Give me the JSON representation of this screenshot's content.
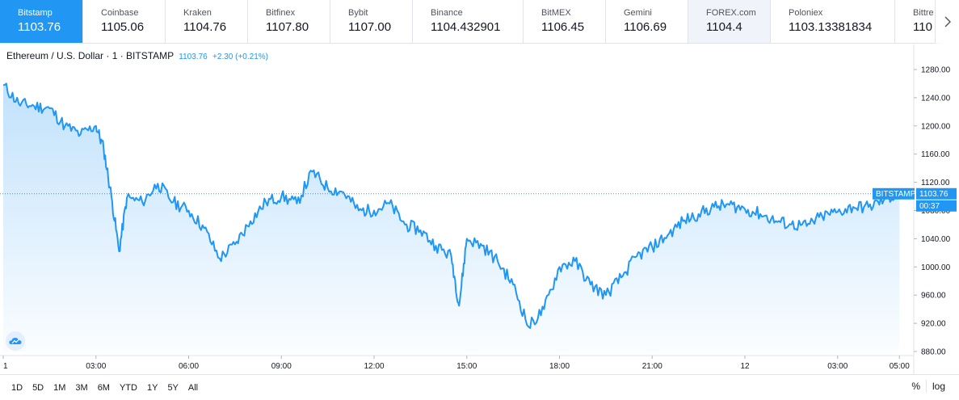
{
  "tabs": [
    {
      "exchange": "Bitstamp",
      "price": "1103.76",
      "state": "active"
    },
    {
      "exchange": "Coinbase",
      "price": "1105.06",
      "state": ""
    },
    {
      "exchange": "Kraken",
      "price": "1104.76",
      "state": ""
    },
    {
      "exchange": "Bitfinex",
      "price": "1107.80",
      "state": ""
    },
    {
      "exchange": "Bybit",
      "price": "1107.00",
      "state": ""
    },
    {
      "exchange": "Binance",
      "price": "1104.432901",
      "state": ""
    },
    {
      "exchange": "BitMEX",
      "price": "1106.45",
      "state": ""
    },
    {
      "exchange": "Gemini",
      "price": "1106.69",
      "state": ""
    },
    {
      "exchange": "FOREX.com",
      "price": "1104.4",
      "state": "highlighted"
    },
    {
      "exchange": "Poloniex",
      "price": "1103.13381834",
      "state": ""
    },
    {
      "exchange": "Bittre",
      "price": "110",
      "state": "partial"
    }
  ],
  "scroll_icon": "chevron-right-icon",
  "legend": {
    "symbol": "Ethereum / U.S. Dollar · 1 · BITSTAMP",
    "value": "1103.76",
    "change": "+2.30 (+0.21%)"
  },
  "price_label": {
    "exchange": "BITSTAMP",
    "price": "1103.76",
    "countdown": "00:37"
  },
  "chart_data": {
    "type": "area",
    "title": "",
    "xlabel": "",
    "ylabel": "",
    "series": [
      {
        "x": [
          "00:00",
          "00:30",
          "01:00",
          "01:30",
          "02:00",
          "02:30",
          "03:00",
          "03:15",
          "03:30",
          "03:45",
          "04:00",
          "04:30",
          "05:00",
          "05:30",
          "06:00",
          "06:30",
          "07:00",
          "07:30",
          "08:00",
          "08:30",
          "09:00",
          "09:30",
          "10:00",
          "10:30",
          "11:00",
          "11:30",
          "12:00",
          "12:30",
          "13:00",
          "13:30",
          "14:00",
          "14:30",
          "14:45",
          "15:00",
          "15:30",
          "16:00",
          "16:30",
          "17:00",
          "17:30",
          "18:00",
          "18:30",
          "19:00",
          "19:30",
          "20:00",
          "20:30",
          "21:00",
          "21:30",
          "22:00",
          "22:30",
          "23:00",
          "23:30",
          "00:00",
          "00:30",
          "01:00",
          "01:30",
          "02:00",
          "02:30",
          "03:00",
          "03:30",
          "04:00",
          "04:30",
          "05:00"
        ],
        "y": [
          1258,
          1232,
          1228,
          1225,
          1200,
          1188,
          1200,
          1168,
          1100,
          1022,
          1098,
          1092,
          1118,
          1092,
          1080,
          1055,
          1012,
          1032,
          1065,
          1092,
          1100,
          1090,
          1135,
          1112,
          1106,
          1080,
          1080,
          1090,
          1060,
          1052,
          1030,
          1015,
          945,
          1040,
          1030,
          1008,
          975,
          915,
          940,
          1000,
          1008,
          975,
          960,
          985,
          1015,
          1028,
          1045,
          1065,
          1075,
          1085,
          1088,
          1082,
          1075,
          1065,
          1060,
          1058,
          1072,
          1078,
          1085,
          1085,
          1095,
          1103.76
        ]
      }
    ],
    "yticks": [
      "1280.00",
      "1240.00",
      "1200.00",
      "1160.00",
      "1120.00",
      "1080.00",
      "1040.00",
      "1000.00",
      "960.00",
      "920.00",
      "880.00"
    ],
    "xticks": [
      "1",
      "03:00",
      "06:00",
      "09:00",
      "12:00",
      "15:00",
      "18:00",
      "21:00",
      "12",
      "03:00",
      "05:00"
    ],
    "ylim": [
      880,
      1280
    ],
    "last_price": 1103.76,
    "line_color": "#2196f3",
    "fill_color": "#2196f3",
    "grid": false
  },
  "ranges": [
    "1D",
    "5D",
    "1M",
    "3M",
    "6M",
    "YTD",
    "1Y",
    "5Y",
    "All"
  ],
  "controls": {
    "percent": "%",
    "log": "log"
  },
  "logo_icon": "tradingview-cloud-icon"
}
